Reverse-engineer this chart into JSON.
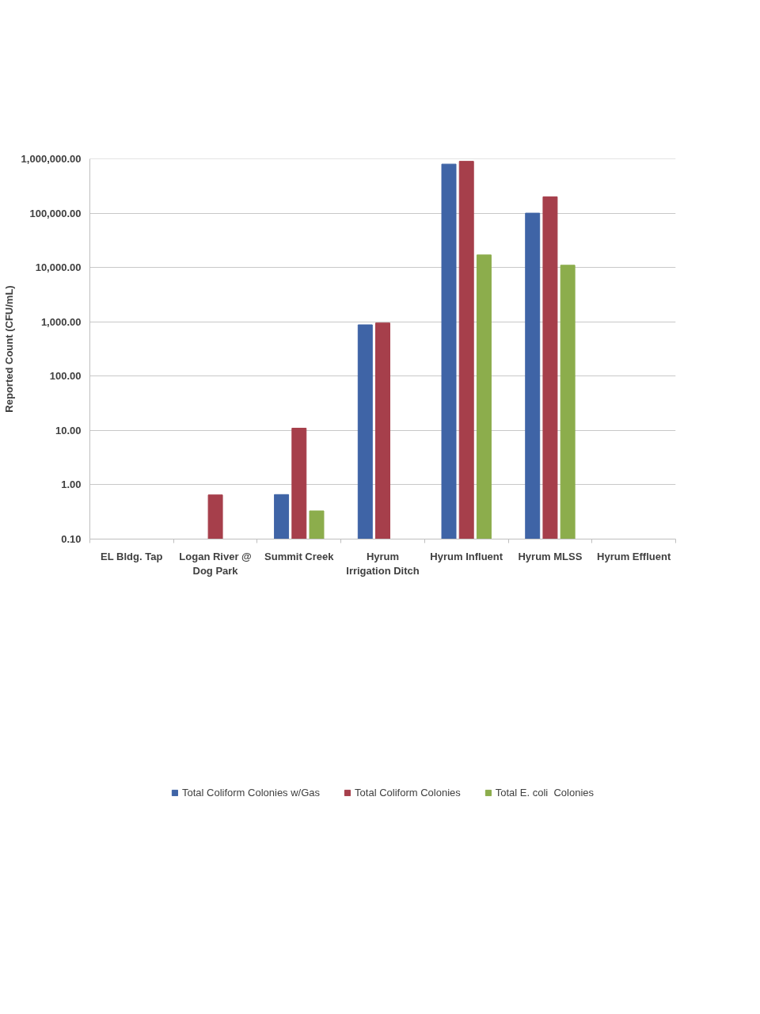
{
  "chart_data": {
    "type": "bar",
    "ylabel": "Reported Count (CFU/mL)",
    "categories": [
      "EL Bldg. Tap",
      "Logan River @ Dog Park",
      "Summit Creek",
      "Hyrum Irrigation Ditch",
      "Hyrum Influent",
      "Hyrum MLSS",
      "Hyrum Effluent"
    ],
    "series": [
      {
        "name": "Total Coliform Colonies w/Gas",
        "color": "#3f64a6",
        "values": [
          null,
          null,
          0.66,
          880,
          800000,
          100000,
          null
        ]
      },
      {
        "name": "Total Coliform Colonies",
        "color": "#a63f4b",
        "values": [
          null,
          0.65,
          11,
          950,
          900000,
          200000,
          null
        ]
      },
      {
        "name": "Total E. coli  Colonies",
        "color": "#8cad4c",
        "values": [
          null,
          null,
          0.33,
          null,
          17000,
          11000,
          null
        ]
      }
    ],
    "log": "y",
    "ylim": [
      0.1,
      1000000
    ],
    "yticks": [
      {
        "value": 0.1,
        "label": "0.10"
      },
      {
        "value": 1,
        "label": "1.00"
      },
      {
        "value": 10,
        "label": "10.00"
      },
      {
        "value": 100,
        "label": "100.00"
      },
      {
        "value": 1000,
        "label": "1,000.00"
      },
      {
        "value": 10000,
        "label": "10,000.00"
      },
      {
        "value": 100000,
        "label": "100,000.00"
      },
      {
        "value": 1000000,
        "label": "1,000,000.00"
      }
    ],
    "grid": "y",
    "legend": "bottom"
  }
}
